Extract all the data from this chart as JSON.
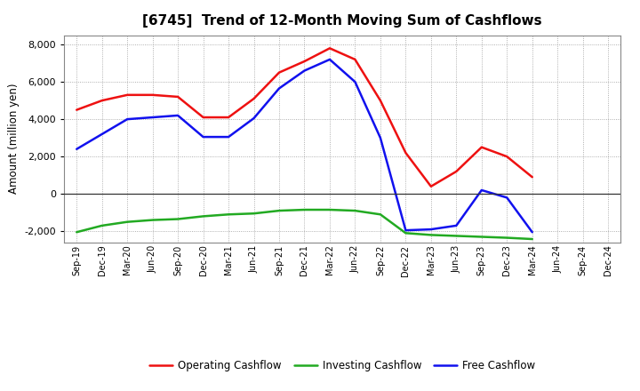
{
  "title": "[6745]  Trend of 12-Month Moving Sum of Cashflows",
  "ylabel": "Amount (million yen)",
  "ylim": [
    -2600,
    8500
  ],
  "yticks": [
    -2000,
    0,
    2000,
    4000,
    6000,
    8000
  ],
  "background_color": "#ffffff",
  "grid_color": "#999999",
  "x_labels": [
    "Sep-19",
    "Dec-19",
    "Mar-20",
    "Jun-20",
    "Sep-20",
    "Dec-20",
    "Mar-21",
    "Jun-21",
    "Sep-21",
    "Dec-21",
    "Mar-22",
    "Jun-22",
    "Sep-22",
    "Dec-22",
    "Mar-23",
    "Jun-23",
    "Sep-23",
    "Dec-23",
    "Mar-24",
    "Jun-24",
    "Sep-24",
    "Dec-24"
  ],
  "operating": [
    4500,
    5000,
    5300,
    5300,
    5200,
    4100,
    4100,
    5100,
    6500,
    7100,
    7800,
    7200,
    5000,
    2200,
    400,
    1200,
    2500,
    2000,
    900,
    null,
    null,
    null
  ],
  "investing": [
    -2050,
    -1700,
    -1500,
    -1400,
    -1350,
    -1200,
    -1100,
    -1050,
    -900,
    -850,
    -850,
    -900,
    -1100,
    -2100,
    -2200,
    -2250,
    -2300,
    -2350,
    -2420,
    null,
    null,
    null
  ],
  "free": [
    2400,
    3200,
    4000,
    4100,
    4200,
    3050,
    3050,
    4050,
    5650,
    6600,
    7200,
    6000,
    3000,
    -1950,
    -1900,
    -1700,
    200,
    -200,
    -2050,
    null,
    null,
    null
  ],
  "operating_color": "#ee1111",
  "investing_color": "#22aa22",
  "free_color": "#1111ee",
  "line_width": 1.8
}
